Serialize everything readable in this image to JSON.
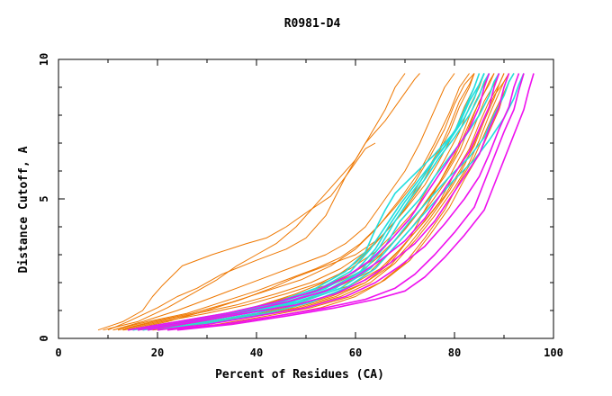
{
  "chart_data": {
    "type": "line",
    "title": "R0981-D4",
    "xlabel": "Percent of Residues (CA)",
    "ylabel": "Distance Cutoff, A",
    "xlim": [
      0,
      100
    ],
    "ylim": [
      0,
      10
    ],
    "x_ticks": [
      0,
      20,
      40,
      60,
      80,
      100
    ],
    "y_ticks": [
      0,
      5,
      10
    ],
    "grid": false,
    "legend": "none",
    "colors": {
      "orange": "#ee7700",
      "cyan": "#22dddd",
      "magenta": "#ee11ee",
      "axis": "#000000"
    },
    "series": [
      {
        "name": "orange-01",
        "color": "orange",
        "x": [
          8,
          13,
          17,
          19,
          21,
          25,
          31,
          38,
          42,
          46,
          50,
          55,
          58,
          60,
          62,
          64
        ],
        "y": [
          0.3,
          0.6,
          1.0,
          1.5,
          1.9,
          2.6,
          3.0,
          3.4,
          3.6,
          4.0,
          4.5,
          5.1,
          5.8,
          6.3,
          6.8,
          7.0
        ]
      },
      {
        "name": "orange-02",
        "color": "orange",
        "x": [
          10,
          14,
          20,
          24,
          28,
          33,
          40,
          46,
          50,
          54,
          58,
          62,
          66,
          70,
          72,
          73
        ],
        "y": [
          0.3,
          0.6,
          1.1,
          1.5,
          1.8,
          2.3,
          2.8,
          3.2,
          3.6,
          4.4,
          5.8,
          7.0,
          7.8,
          8.8,
          9.3,
          9.5
        ]
      },
      {
        "name": "orange-03",
        "color": "orange",
        "x": [
          9,
          16,
          22,
          27,
          32,
          36,
          40,
          44,
          48,
          52,
          56,
          60,
          63,
          66,
          68,
          70
        ],
        "y": [
          0.3,
          0.6,
          1.1,
          1.6,
          2.1,
          2.6,
          3.0,
          3.4,
          4.0,
          4.8,
          5.6,
          6.4,
          7.3,
          8.2,
          9.0,
          9.5
        ]
      },
      {
        "name": "orange-04",
        "color": "orange",
        "x": [
          11,
          17,
          24,
          30,
          36,
          42,
          48,
          54,
          58,
          62,
          66,
          70,
          73,
          76,
          78,
          80
        ],
        "y": [
          0.3,
          0.6,
          1.0,
          1.4,
          1.8,
          2.2,
          2.6,
          3.0,
          3.4,
          4.0,
          5.0,
          6.0,
          7.0,
          8.2,
          9.0,
          9.5
        ]
      },
      {
        "name": "orange-05",
        "color": "orange",
        "x": [
          11,
          18,
          26,
          33,
          40,
          46,
          52,
          57,
          61,
          65,
          69,
          73,
          76,
          79,
          81,
          83
        ],
        "y": [
          0.3,
          0.6,
          0.9,
          1.3,
          1.7,
          2.1,
          2.5,
          2.9,
          3.4,
          4.1,
          5.0,
          6.0,
          7.0,
          8.1,
          9.0,
          9.5
        ]
      },
      {
        "name": "orange-06",
        "color": "orange",
        "x": [
          12,
          19,
          27,
          35,
          42,
          49,
          55,
          60,
          64,
          68,
          72,
          75,
          78,
          80,
          82,
          84
        ],
        "y": [
          0.3,
          0.6,
          0.9,
          1.3,
          1.7,
          2.1,
          2.6,
          3.2,
          3.9,
          4.7,
          5.6,
          6.5,
          7.5,
          8.4,
          9.1,
          9.5
        ]
      },
      {
        "name": "orange-07",
        "color": "orange",
        "x": [
          12,
          20,
          28,
          36,
          44,
          51,
          57,
          62,
          66,
          70,
          74,
          77,
          80,
          82,
          84,
          85
        ],
        "y": [
          0.3,
          0.6,
          0.9,
          1.2,
          1.6,
          2.0,
          2.5,
          3.1,
          3.8,
          4.6,
          5.5,
          6.4,
          7.4,
          8.3,
          9.0,
          9.5
        ]
      },
      {
        "name": "orange-08",
        "color": "orange",
        "x": [
          13,
          21,
          30,
          38,
          46,
          53,
          59,
          64,
          68,
          72,
          75,
          78,
          81,
          83,
          85,
          86
        ],
        "y": [
          0.3,
          0.6,
          0.9,
          1.2,
          1.6,
          2.0,
          2.5,
          3.1,
          3.8,
          4.6,
          5.5,
          6.4,
          7.4,
          8.3,
          9.0,
          9.5
        ]
      },
      {
        "name": "orange-09",
        "color": "orange",
        "x": [
          13,
          22,
          31,
          39,
          47,
          54,
          60,
          65,
          69,
          73,
          77,
          80,
          82,
          84,
          86,
          87
        ],
        "y": [
          0.3,
          0.5,
          0.8,
          1.1,
          1.5,
          1.9,
          2.4,
          3.0,
          3.7,
          4.6,
          5.6,
          6.6,
          7.5,
          8.4,
          9.1,
          9.5
        ]
      },
      {
        "name": "orange-10",
        "color": "orange",
        "x": [
          14,
          23,
          32,
          40,
          48,
          55,
          61,
          66,
          70,
          74,
          78,
          81,
          83,
          85,
          87,
          88
        ],
        "y": [
          0.3,
          0.5,
          0.8,
          1.1,
          1.5,
          1.9,
          2.4,
          3.1,
          3.9,
          4.8,
          5.8,
          6.7,
          7.6,
          8.5,
          9.1,
          9.5
        ]
      },
      {
        "name": "orange-11",
        "color": "orange",
        "x": [
          15,
          24,
          33,
          42,
          50,
          57,
          63,
          67,
          71,
          75,
          79,
          82,
          84,
          86,
          88,
          89
        ],
        "y": [
          0.3,
          0.5,
          0.8,
          1.1,
          1.5,
          1.9,
          2.4,
          3.1,
          3.9,
          4.8,
          5.8,
          6.8,
          7.6,
          8.5,
          9.1,
          9.5
        ]
      },
      {
        "name": "orange-12",
        "color": "orange",
        "x": [
          16,
          26,
          35,
          44,
          52,
          59,
          65,
          69,
          73,
          77,
          80,
          83,
          85,
          87,
          89,
          90
        ],
        "y": [
          0.3,
          0.5,
          0.8,
          1.1,
          1.5,
          1.9,
          2.5,
          3.2,
          4.0,
          4.9,
          5.9,
          6.8,
          7.7,
          8.5,
          9.1,
          9.5
        ]
      },
      {
        "name": "orange-13",
        "color": "orange",
        "x": [
          17,
          27,
          37,
          46,
          54,
          61,
          66,
          70,
          74,
          78,
          81,
          84,
          86,
          88,
          89,
          90
        ],
        "y": [
          0.3,
          0.5,
          0.8,
          1.1,
          1.5,
          2.0,
          2.6,
          3.4,
          4.2,
          5.1,
          6.0,
          6.9,
          7.8,
          8.6,
          9.1,
          9.5
        ]
      },
      {
        "name": "orange-14",
        "color": "orange",
        "x": [
          18,
          28,
          38,
          47,
          55,
          62,
          67,
          71,
          75,
          79,
          82,
          84,
          86,
          88,
          90,
          91
        ],
        "y": [
          0.3,
          0.5,
          0.8,
          1.1,
          1.5,
          2.0,
          2.6,
          3.4,
          4.3,
          5.3,
          6.2,
          7.0,
          7.9,
          8.7,
          9.2,
          9.5
        ]
      },
      {
        "name": "orange-15",
        "color": "orange",
        "x": [
          20,
          30,
          40,
          49,
          57,
          63,
          68,
          72,
          76,
          80,
          83,
          85,
          87,
          89,
          90,
          91
        ],
        "y": [
          0.3,
          0.5,
          0.8,
          1.1,
          1.5,
          2.0,
          2.7,
          3.5,
          4.4,
          5.4,
          6.3,
          7.1,
          8.0,
          8.8,
          9.2,
          9.5
        ]
      },
      {
        "name": "orange-16",
        "color": "orange",
        "x": [
          22,
          32,
          42,
          51,
          59,
          65,
          70,
          74,
          78,
          81,
          84,
          86,
          88,
          90,
          91,
          92
        ],
        "y": [
          0.3,
          0.5,
          0.8,
          1.1,
          1.5,
          2.0,
          2.7,
          3.6,
          4.6,
          5.6,
          6.5,
          7.3,
          8.1,
          8.8,
          9.2,
          9.5
        ]
      },
      {
        "name": "orange-17",
        "color": "orange",
        "x": [
          24,
          34,
          44,
          53,
          60,
          66,
          71,
          75,
          79,
          82,
          85,
          87,
          89,
          90,
          91,
          92
        ],
        "y": [
          0.3,
          0.5,
          0.8,
          1.1,
          1.5,
          2.1,
          2.8,
          3.7,
          4.7,
          5.7,
          6.6,
          7.4,
          8.2,
          8.8,
          9.2,
          9.5
        ]
      },
      {
        "name": "orange-18",
        "color": "orange",
        "x": [
          14,
          22,
          30,
          37,
          43,
          48,
          54,
          60,
          65,
          69,
          73,
          76,
          79,
          81,
          83,
          84
        ],
        "y": [
          0.3,
          0.6,
          1.0,
          1.4,
          1.8,
          2.2,
          2.6,
          3.0,
          3.6,
          4.4,
          5.4,
          6.4,
          7.4,
          8.3,
          9.0,
          9.5
        ]
      },
      {
        "name": "orange-19",
        "color": "orange",
        "x": [
          16,
          25,
          33,
          41,
          48,
          55,
          60,
          64,
          68,
          71,
          74,
          77,
          79,
          81,
          83,
          84
        ],
        "y": [
          0.3,
          0.5,
          0.8,
          1.2,
          1.6,
          2.1,
          2.7,
          3.4,
          4.2,
          5.0,
          5.9,
          6.8,
          7.6,
          8.5,
          9.1,
          9.5
        ]
      },
      {
        "name": "orange-20",
        "color": "orange",
        "x": [
          19,
          29,
          39,
          48,
          56,
          62,
          67,
          71,
          74,
          77,
          80,
          82,
          84,
          86,
          87,
          88
        ],
        "y": [
          0.3,
          0.5,
          0.8,
          1.1,
          1.5,
          2.0,
          2.7,
          3.6,
          4.6,
          5.6,
          6.5,
          7.3,
          8.1,
          8.8,
          9.2,
          9.5
        ]
      },
      {
        "name": "cyan-01",
        "color": "cyan",
        "x": [
          14,
          24,
          34,
          44,
          52,
          58,
          62,
          64,
          66,
          68,
          72,
          76,
          80,
          82,
          84,
          85
        ],
        "y": [
          0.3,
          0.6,
          0.9,
          1.3,
          1.8,
          2.4,
          3.1,
          3.9,
          4.6,
          5.2,
          5.9,
          6.6,
          7.4,
          8.2,
          9.0,
          9.5
        ]
      },
      {
        "name": "cyan-02",
        "color": "cyan",
        "x": [
          15,
          25,
          35,
          45,
          53,
          59,
          63,
          66,
          69,
          72,
          75,
          78,
          81,
          83,
          85,
          86
        ],
        "y": [
          0.3,
          0.6,
          0.9,
          1.3,
          1.8,
          2.4,
          3.2,
          4.0,
          4.8,
          5.5,
          6.2,
          6.9,
          7.7,
          8.5,
          9.1,
          9.5
        ]
      },
      {
        "name": "cyan-03",
        "color": "cyan",
        "x": [
          16,
          26,
          36,
          46,
          54,
          60,
          64,
          67,
          70,
          73,
          76,
          79,
          82,
          84,
          85,
          86
        ],
        "y": [
          0.3,
          0.6,
          0.9,
          1.3,
          1.8,
          2.4,
          3.2,
          4.1,
          4.9,
          5.6,
          6.4,
          7.1,
          7.9,
          8.6,
          9.1,
          9.5
        ]
      },
      {
        "name": "cyan-04",
        "color": "cyan",
        "x": [
          17,
          27,
          37,
          47,
          55,
          61,
          65,
          68,
          71,
          74,
          77,
          80,
          83,
          85,
          86,
          87
        ],
        "y": [
          0.3,
          0.6,
          0.9,
          1.3,
          1.8,
          2.4,
          3.3,
          4.2,
          5.0,
          5.7,
          6.5,
          7.2,
          8.0,
          8.7,
          9.2,
          9.5
        ]
      },
      {
        "name": "cyan-05",
        "color": "cyan",
        "x": [
          18,
          28,
          38,
          48,
          56,
          62,
          66,
          69,
          73,
          76,
          79,
          82,
          85,
          87,
          88,
          89
        ],
        "y": [
          0.3,
          0.6,
          0.9,
          1.3,
          1.8,
          2.5,
          3.3,
          4.2,
          5.0,
          5.8,
          6.5,
          7.2,
          8.0,
          8.7,
          9.2,
          9.5
        ]
      },
      {
        "name": "cyan-06",
        "color": "cyan",
        "x": [
          20,
          30,
          40,
          49,
          57,
          63,
          67,
          71,
          75,
          79,
          83,
          86,
          88,
          90,
          91,
          92
        ],
        "y": [
          0.3,
          0.6,
          0.9,
          1.3,
          1.8,
          2.5,
          3.3,
          4.2,
          5.0,
          5.8,
          6.5,
          7.2,
          8.0,
          8.7,
          9.2,
          9.5
        ]
      },
      {
        "name": "cyan-07",
        "color": "cyan",
        "x": [
          22,
          32,
          42,
          51,
          58,
          64,
          68,
          72,
          76,
          80,
          84,
          87,
          90,
          92,
          93,
          94
        ],
        "y": [
          0.3,
          0.6,
          0.9,
          1.3,
          1.8,
          2.5,
          3.3,
          4.1,
          4.9,
          5.7,
          6.4,
          7.1,
          7.9,
          8.6,
          9.1,
          9.5
        ]
      },
      {
        "name": "magenta-01",
        "color": "magenta",
        "x": [
          14,
          24,
          34,
          44,
          52,
          58,
          63,
          67,
          71,
          74,
          77,
          80,
          83,
          85,
          86,
          87
        ],
        "y": [
          0.3,
          0.6,
          0.9,
          1.3,
          1.7,
          2.2,
          2.8,
          3.5,
          4.3,
          5.1,
          5.9,
          6.7,
          7.5,
          8.3,
          9.0,
          9.5
        ]
      },
      {
        "name": "magenta-02",
        "color": "magenta",
        "x": [
          16,
          26,
          36,
          46,
          54,
          60,
          65,
          70,
          74,
          77,
          80,
          83,
          85,
          87,
          88,
          89
        ],
        "y": [
          0.3,
          0.6,
          0.9,
          1.3,
          1.7,
          2.2,
          2.8,
          3.5,
          4.3,
          5.1,
          5.9,
          6.7,
          7.5,
          8.3,
          9.0,
          9.5
        ]
      },
      {
        "name": "magenta-03",
        "color": "magenta",
        "x": [
          18,
          28,
          38,
          48,
          56,
          62,
          67,
          72,
          76,
          79,
          82,
          85,
          87,
          89,
          90,
          91
        ],
        "y": [
          0.3,
          0.6,
          0.9,
          1.2,
          1.6,
          2.1,
          2.7,
          3.4,
          4.2,
          5.0,
          5.8,
          6.6,
          7.5,
          8.3,
          9.0,
          9.5
        ]
      },
      {
        "name": "magenta-04",
        "color": "magenta",
        "x": [
          20,
          30,
          40,
          50,
          58,
          64,
          69,
          74,
          78,
          82,
          85,
          87,
          89,
          91,
          92,
          93
        ],
        "y": [
          0.3,
          0.5,
          0.8,
          1.1,
          1.5,
          2.0,
          2.6,
          3.3,
          4.1,
          5.0,
          5.8,
          6.6,
          7.5,
          8.3,
          9.0,
          9.5
        ]
      },
      {
        "name": "magenta-05",
        "color": "magenta",
        "x": [
          22,
          33,
          44,
          54,
          62,
          68,
          72,
          76,
          80,
          84,
          86,
          88,
          90,
          92,
          93,
          94
        ],
        "y": [
          0.3,
          0.5,
          0.8,
          1.1,
          1.4,
          1.8,
          2.3,
          3.0,
          3.8,
          4.7,
          5.6,
          6.5,
          7.4,
          8.2,
          8.9,
          9.5
        ]
      },
      {
        "name": "magenta-06",
        "color": "magenta",
        "x": [
          24,
          35,
          46,
          56,
          64,
          70,
          74,
          78,
          82,
          86,
          88,
          90,
          92,
          94,
          95,
          96
        ],
        "y": [
          0.3,
          0.5,
          0.8,
          1.1,
          1.4,
          1.7,
          2.2,
          2.9,
          3.7,
          4.6,
          5.5,
          6.4,
          7.3,
          8.2,
          8.9,
          9.5
        ]
      }
    ]
  }
}
